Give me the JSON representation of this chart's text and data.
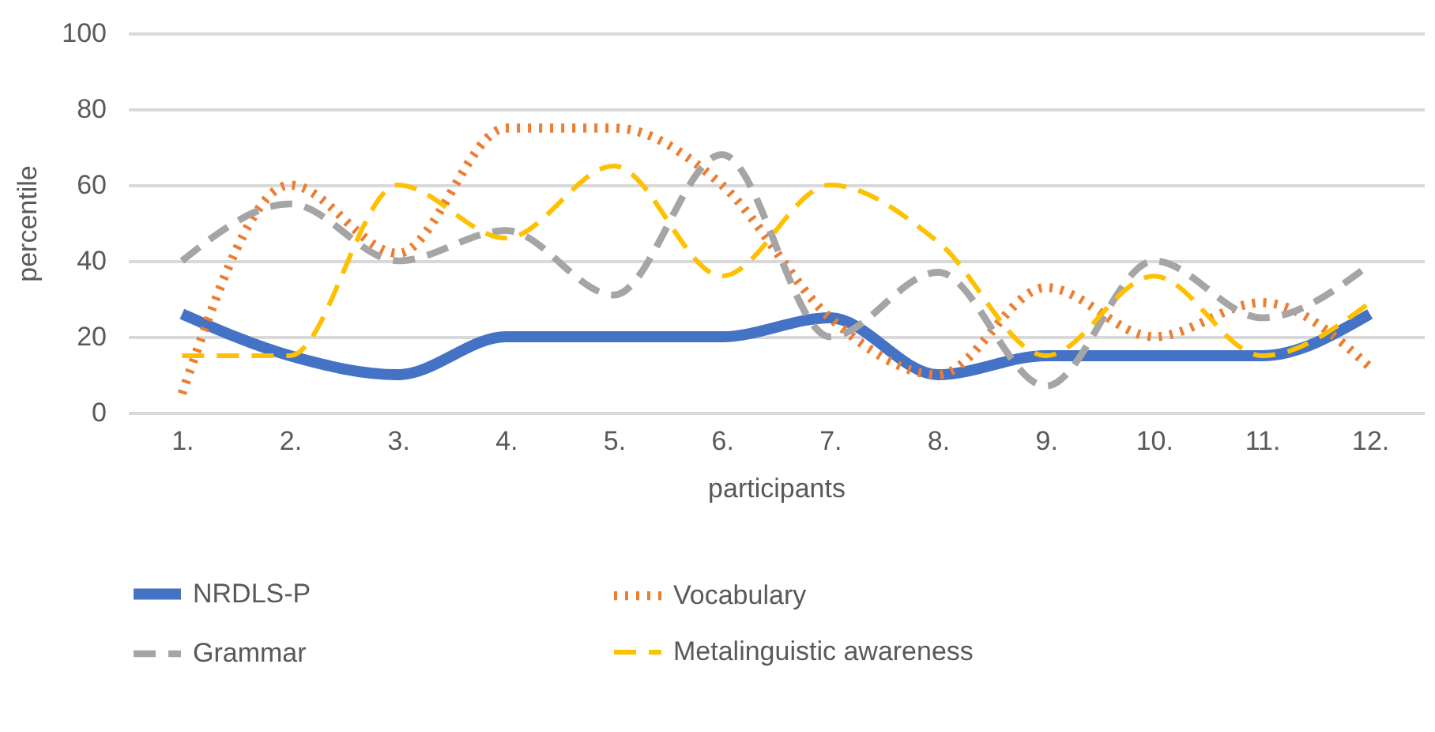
{
  "chart_data": {
    "type": "line",
    "xlabel": "participants",
    "ylabel": "percentile",
    "categories": [
      "1.",
      "2.",
      "3.",
      "4.",
      "5.",
      "6.",
      "7.",
      "8.",
      "9.",
      "10.",
      "11.",
      "12."
    ],
    "series": [
      {
        "name": "NRDLS-P",
        "color": "#4472c4",
        "line_style": "solid",
        "values": [
          26,
          15,
          10,
          20,
          20,
          20,
          25,
          10,
          15,
          15,
          15,
          26
        ]
      },
      {
        "name": "Vocabulary",
        "color": "#ed7d31",
        "line_style": "dotted",
        "values": [
          5,
          60,
          42,
          75,
          75,
          60,
          25,
          10,
          33,
          20,
          29,
          12
        ]
      },
      {
        "name": "Grammar",
        "color": "#a5a5a5",
        "line_style": "dashed",
        "values": [
          40,
          55,
          40,
          48,
          31,
          68,
          20,
          37,
          7,
          40,
          25,
          39
        ]
      },
      {
        "name": "Metalinguistic awareness",
        "color": "#ffc000",
        "line_style": "dashed",
        "values": [
          15,
          15,
          60,
          46,
          65,
          36,
          60,
          45,
          15,
          36,
          15,
          29
        ]
      }
    ],
    "ylim": [
      0,
      100
    ],
    "yticks": [
      0,
      20,
      40,
      60,
      80,
      100
    ],
    "grid": "y",
    "legend": "bottom",
    "marker": "none"
  }
}
